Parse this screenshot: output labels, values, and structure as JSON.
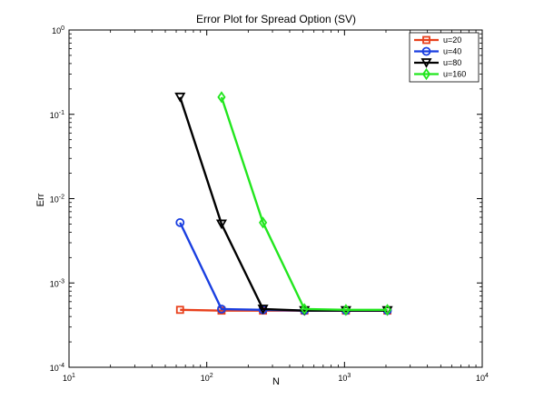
{
  "chart_data": {
    "type": "line",
    "title": "Error Plot for Spread Option (SV)",
    "xlabel": "N",
    "ylabel": "Err",
    "xscale": "log",
    "yscale": "log",
    "xlim": [
      10,
      10000
    ],
    "ylim": [
      0.0001,
      1
    ],
    "grid": false,
    "legend_position": "top-right",
    "x_ticks": [
      {
        "value": 10,
        "base": "10",
        "exp": "1"
      },
      {
        "value": 100,
        "base": "10",
        "exp": "2"
      },
      {
        "value": 1000,
        "base": "10",
        "exp": "3"
      },
      {
        "value": 10000,
        "base": "10",
        "exp": "4"
      }
    ],
    "y_ticks": [
      {
        "value": 0.0001,
        "base": "10",
        "exp": "-4"
      },
      {
        "value": 0.001,
        "base": "10",
        "exp": "-3"
      },
      {
        "value": 0.01,
        "base": "10",
        "exp": "-2"
      },
      {
        "value": 0.1,
        "base": "10",
        "exp": "-1"
      },
      {
        "value": 1,
        "base": "10",
        "exp": "0"
      }
    ],
    "series": [
      {
        "name": "u=20",
        "color": "#e8401c",
        "marker": "square",
        "x": [
          64,
          128,
          256,
          512,
          1024,
          2048
        ],
        "y": [
          0.00048,
          0.00047,
          0.00047,
          0.00047,
          0.00047,
          0.00047
        ]
      },
      {
        "name": "u=40",
        "color": "#1a3fe0",
        "marker": "circle",
        "x": [
          64,
          128,
          256,
          512,
          1024,
          2048
        ],
        "y": [
          0.0052,
          0.00049,
          0.00048,
          0.00047,
          0.00047,
          0.00047
        ]
      },
      {
        "name": "u=80",
        "color": "#000000",
        "marker": "triangle-down",
        "x": [
          64,
          128,
          256,
          512,
          1024,
          2048
        ],
        "y": [
          0.16,
          0.005,
          0.00049,
          0.00047,
          0.00047,
          0.00047
        ]
      },
      {
        "name": "u=160",
        "color": "#22e61e",
        "marker": "diamond",
        "x": [
          128,
          256,
          512,
          1024,
          2048
        ],
        "y": [
          0.16,
          0.0052,
          0.00049,
          0.00048,
          0.00048
        ]
      }
    ]
  }
}
